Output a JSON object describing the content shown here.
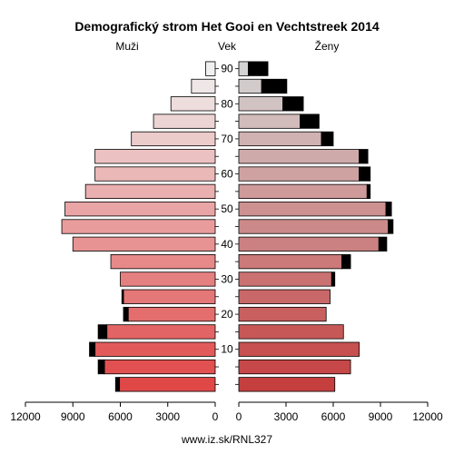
{
  "chart_data": {
    "type": "bar",
    "title": "Demografický strom Het Gooi en Vechtstreek 2014",
    "left_label": "Muži",
    "center_label": "Vek",
    "right_label": "Ženy",
    "footer": "www.iz.sk/RNL327",
    "age_ticks": [
      "10",
      "20",
      "30",
      "40",
      "50",
      "60",
      "70",
      "80",
      "90"
    ],
    "x_ticks_left": [
      "12000",
      "9000",
      "6000",
      "3000",
      "0"
    ],
    "x_ticks_right": [
      "0",
      "3000",
      "6000",
      "9000",
      "12000"
    ],
    "xlim": [
      0,
      12000
    ],
    "age_groups": [
      "0-4",
      "5-9",
      "10-14",
      "15-19",
      "20-24",
      "25-29",
      "30-34",
      "35-39",
      "40-44",
      "45-49",
      "50-54",
      "55-59",
      "60-64",
      "65-69",
      "70-74",
      "75-79",
      "80-84",
      "85-89",
      "90+"
    ],
    "series": [
      {
        "name": "Muži",
        "values": [
          6300,
          7400,
          7950,
          7400,
          5800,
          5900,
          6000,
          6600,
          9000,
          9700,
          9500,
          8200,
          7600,
          7600,
          5300,
          3900,
          2800,
          1500,
          600
        ],
        "excess": [
          250,
          400,
          350,
          550,
          300,
          100,
          0,
          0,
          0,
          0,
          0,
          0,
          0,
          0,
          0,
          0,
          0,
          0,
          0
        ]
      },
      {
        "name": "Ženy",
        "values": [
          6100,
          7100,
          7650,
          6650,
          5550,
          5800,
          6100,
          7100,
          9400,
          9800,
          9700,
          8350,
          8350,
          8200,
          6000,
          5100,
          4100,
          3050,
          1850
        ],
        "excess": [
          0,
          0,
          0,
          0,
          0,
          0,
          200,
          550,
          500,
          300,
          350,
          200,
          700,
          550,
          750,
          1200,
          1300,
          1600,
          1250
        ]
      }
    ],
    "colors": {
      "outline": "#000000",
      "excess": "#000000",
      "bottom": "#e04848",
      "top": "#f0f0f0"
    }
  }
}
